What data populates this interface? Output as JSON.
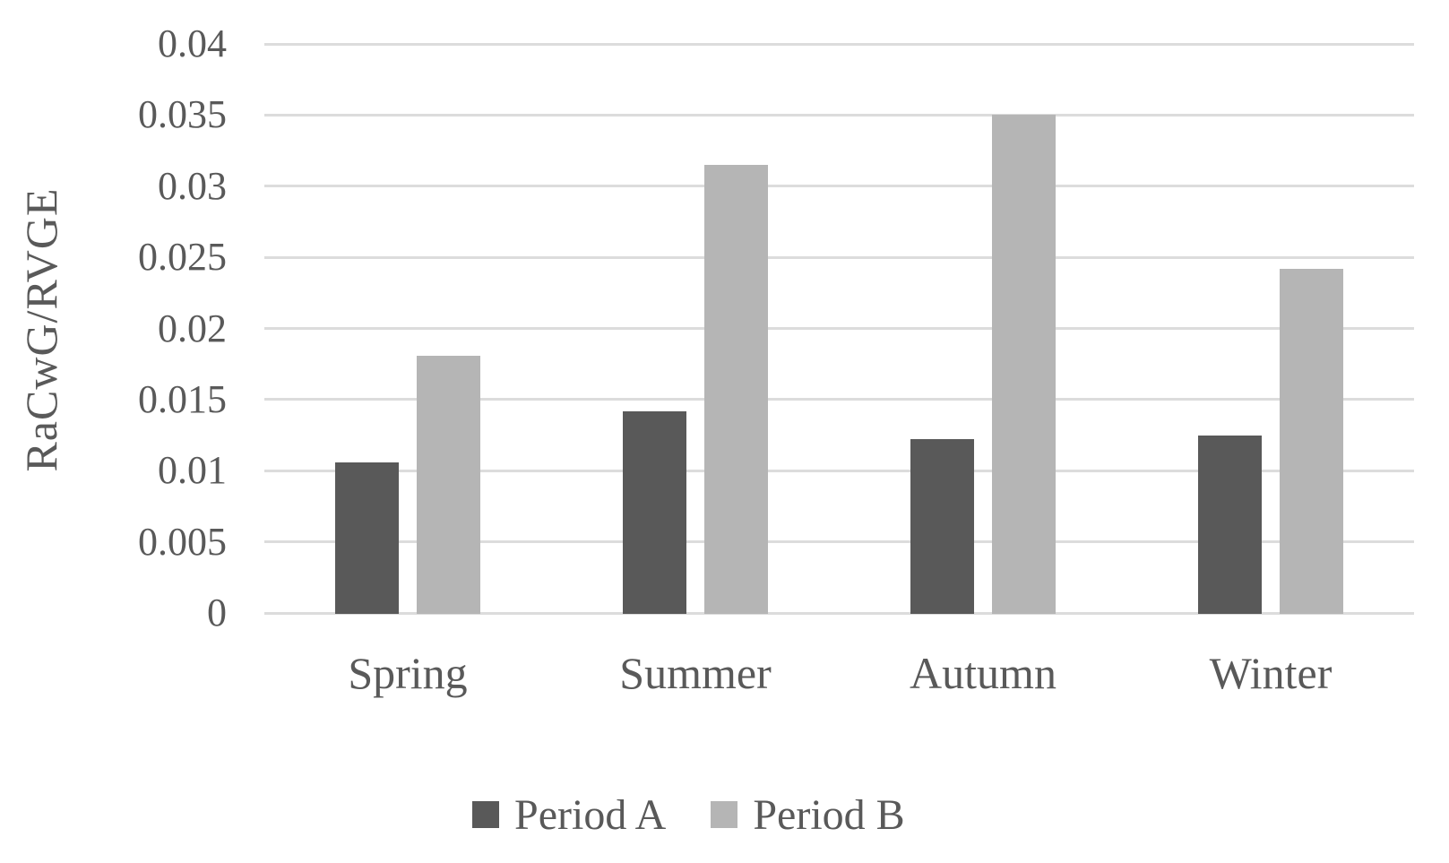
{
  "chart_data": {
    "type": "bar",
    "title": "",
    "categories": [
      "Spring",
      "Summer",
      "Autumn",
      "Winter"
    ],
    "series": [
      {
        "name": "Period A",
        "color": "#595959",
        "values": [
          0.0106,
          0.0142,
          0.0122,
          0.0125
        ]
      },
      {
        "name": "Period B",
        "color": "#b5b5b5",
        "values": [
          0.0181,
          0.0315,
          0.035,
          0.0242
        ]
      }
    ],
    "xlabel": "",
    "ylabel": "RaCwG/RVGE",
    "ylim": [
      0,
      0.04
    ],
    "yticks": [
      {
        "value": 0,
        "label": "0"
      },
      {
        "value": 0.005,
        "label": "0.005"
      },
      {
        "value": 0.01,
        "label": "0.01"
      },
      {
        "value": 0.015,
        "label": "0.015"
      },
      {
        "value": 0.02,
        "label": "0.02"
      },
      {
        "value": 0.025,
        "label": "0.025"
      },
      {
        "value": 0.03,
        "label": "0.03"
      },
      {
        "value": 0.035,
        "label": "0.035"
      },
      {
        "value": 0.04,
        "label": "0.04"
      }
    ],
    "grid": true,
    "gridline_color": "#dcdcdc",
    "text_color": "#595959",
    "background_color": "#ffffff",
    "legend_position": "bottom"
  }
}
